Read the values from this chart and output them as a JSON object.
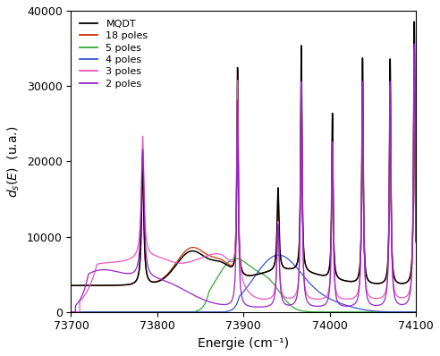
{
  "xlabel": "Energie (cm⁻¹)",
  "ylabel": "$d_s(E)$  (u.a.)",
  "xlim": [
    73700,
    74100
  ],
  "ylim": [
    0,
    40000
  ],
  "xticks": [
    73700,
    73800,
    73900,
    74000,
    74100
  ],
  "yticks": [
    0,
    10000,
    20000,
    30000,
    40000
  ],
  "legend_entries": [
    "MQDT",
    "18 poles",
    "5 poles",
    "4 poles",
    "3 poles",
    "2 poles"
  ],
  "colors": {
    "MQDT": "#000000",
    "18poles": "#cc3300",
    "5poles": "#33aa33",
    "4poles": "#3355cc",
    "3poles": "#ee55bb",
    "2poles": "#9922cc"
  },
  "background_color": "#ffffff"
}
